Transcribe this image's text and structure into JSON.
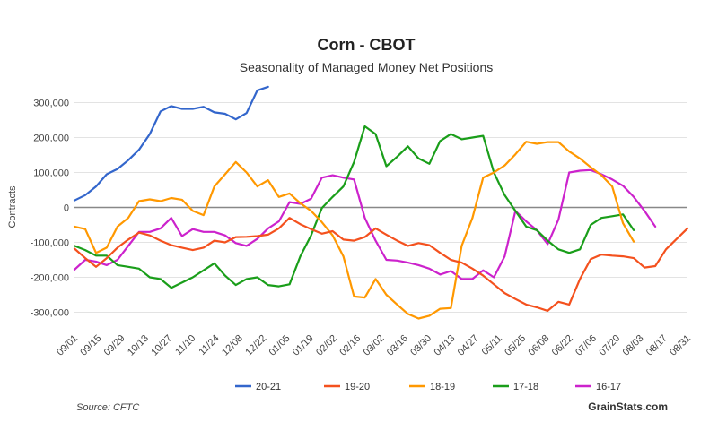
{
  "chart_data": {
    "type": "line",
    "title": "Corn - CBOT",
    "subtitle": "Seasonality of Managed Money Net Positions",
    "ylabel": "Contracts",
    "xlabel": "",
    "ylim": [
      -350000,
      350000
    ],
    "yticks": [
      300000,
      200000,
      100000,
      0,
      -100000,
      -200000,
      -300000
    ],
    "ytick_labels": [
      "300,000",
      "200,000",
      "100,000",
      "0",
      "-100,000",
      "-200,000",
      "-300,000"
    ],
    "xticks": [
      "09/01",
      "09/15",
      "09/29",
      "10/13",
      "10/27",
      "11/10",
      "11/24",
      "12/08",
      "12/22",
      "01/05",
      "01/19",
      "02/02",
      "02/16",
      "03/02",
      "03/16",
      "03/30",
      "04/13",
      "04/27",
      "05/11",
      "05/25",
      "06/08",
      "06/22",
      "07/06",
      "07/20",
      "08/03",
      "08/17",
      "08/31"
    ],
    "grid": "horizontal",
    "legend_position": "bottom",
    "series": [
      {
        "name": "20-21",
        "color": "#3366cc",
        "values": [
          20000,
          35000,
          60000,
          95000,
          110000,
          135000,
          165000,
          210000,
          275000,
          290000,
          282000,
          282000,
          288000,
          272000,
          268000,
          252000,
          270000,
          335000,
          345000
        ]
      },
      {
        "name": "19-20",
        "color": "#f4511e",
        "values": [
          -118000,
          -145000,
          -170000,
          -145000,
          -115000,
          -92000,
          -72000,
          -80000,
          -95000,
          -108000,
          -115000,
          -122000,
          -115000,
          -95000,
          -100000,
          -85000,
          -84000,
          -82000,
          -78000,
          -60000,
          -30000,
          -48000,
          -62000,
          -75000,
          -68000,
          -92000,
          -95000,
          -85000,
          -60000,
          -78000,
          -95000,
          -110000,
          -102000,
          -108000,
          -130000,
          -150000,
          -158000,
          -175000,
          -195000,
          -220000,
          -245000,
          -262000,
          -278000,
          -286000,
          -296000,
          -270000,
          -278000,
          -205000,
          -148000,
          -135000,
          -138000,
          -140000,
          -145000,
          -172000,
          -168000,
          -120000,
          -90000,
          -60000
        ]
      },
      {
        "name": "18-19",
        "color": "#ff9800",
        "values": [
          -55000,
          -62000,
          -130000,
          -115000,
          -55000,
          -30000,
          18000,
          23000,
          18000,
          27000,
          22000,
          -10000,
          -22000,
          60000,
          95000,
          130000,
          100000,
          60000,
          78000,
          30000,
          40000,
          12000,
          -10000,
          -42000,
          -80000,
          -140000,
          -255000,
          -258000,
          -205000,
          -250000,
          -278000,
          -305000,
          -318000,
          -310000,
          -290000,
          -288000,
          -110000,
          -30000,
          85000,
          100000,
          120000,
          152000,
          188000,
          182000,
          187000,
          187000,
          160000,
          140000,
          115000,
          92000,
          60000,
          -45000,
          -98000
        ]
      },
      {
        "name": "17-18",
        "color": "#1a9e1a",
        "values": [
          -110000,
          -122000,
          -138000,
          -138000,
          -165000,
          -170000,
          -175000,
          -200000,
          -205000,
          -230000,
          -215000,
          -200000,
          -180000,
          -160000,
          -195000,
          -222000,
          -205000,
          -200000,
          -222000,
          -226000,
          -220000,
          -140000,
          -80000,
          -2000,
          30000,
          60000,
          130000,
          232000,
          210000,
          118000,
          145000,
          175000,
          140000,
          125000,
          190000,
          210000,
          195000,
          200000,
          205000,
          100000,
          35000,
          -10000,
          -55000,
          -65000,
          -95000,
          -120000,
          -130000,
          -120000,
          -50000,
          -30000,
          -25000,
          -20000,
          -65000
        ]
      },
      {
        "name": "16-17",
        "color": "#cc22cc",
        "values": [
          -178000,
          -150000,
          -155000,
          -165000,
          -150000,
          -110000,
          -70000,
          -70000,
          -60000,
          -30000,
          -82000,
          -62000,
          -70000,
          -70000,
          -80000,
          -102000,
          -110000,
          -90000,
          -60000,
          -40000,
          15000,
          10000,
          25000,
          85000,
          92000,
          85000,
          80000,
          -30000,
          -95000,
          -150000,
          -152000,
          -158000,
          -165000,
          -175000,
          -192000,
          -182000,
          -205000,
          -205000,
          -180000,
          -200000,
          -140000,
          -10000,
          -40000,
          -65000,
          -105000,
          -35000,
          100000,
          105000,
          107000,
          95000,
          80000,
          62000,
          30000,
          -10000,
          -55000
        ]
      }
    ],
    "source": "Source: CFTC",
    "brand": "GrainStats.com"
  }
}
